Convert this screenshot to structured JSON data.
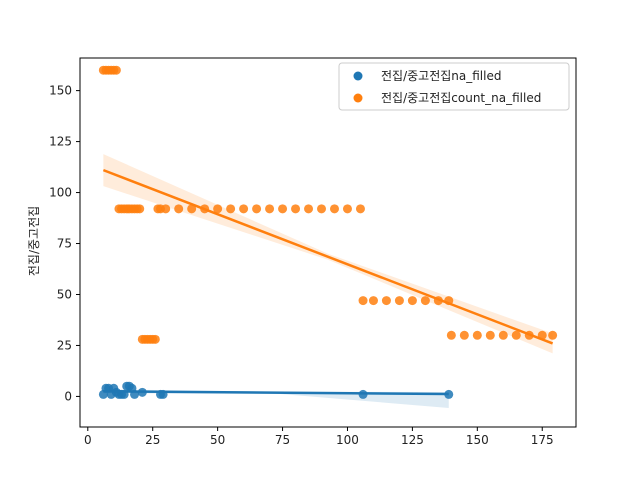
{
  "chart_data": {
    "type": "scatter",
    "title": "",
    "xlabel": "",
    "ylabel": "전집/중고전집",
    "xlim": [
      -3,
      188
    ],
    "ylim": [
      -15,
      166
    ],
    "xticks": [
      0,
      25,
      50,
      75,
      100,
      125,
      150,
      175
    ],
    "yticks": [
      0,
      25,
      50,
      75,
      100,
      125,
      150
    ],
    "grid": false,
    "legend_position": "top-right",
    "series": [
      {
        "name": "전집/중고전집na_filled",
        "color": "#1f77b4",
        "x": [
          6,
          7,
          8,
          9,
          10,
          11,
          12,
          13,
          14,
          15,
          16,
          17,
          18,
          21,
          28,
          29,
          106,
          139
        ],
        "y": [
          1,
          4,
          4,
          1,
          4,
          2,
          1,
          1,
          1,
          5,
          5,
          4,
          1,
          2,
          1,
          1,
          1,
          1
        ],
        "regression": {
          "x": [
            6,
            139
          ],
          "y": [
            2.5,
            1.2
          ]
        }
      },
      {
        "name": "전집/중고전집count_na_filled",
        "color": "#ff7f0e",
        "x": [
          6,
          7,
          8,
          9,
          10,
          11,
          12,
          13,
          14,
          15,
          16,
          17,
          18,
          19,
          20,
          21,
          22,
          23,
          24,
          25,
          26,
          27,
          28,
          30,
          35,
          40,
          45,
          50,
          55,
          60,
          65,
          70,
          75,
          80,
          85,
          90,
          95,
          100,
          105,
          106,
          110,
          115,
          120,
          125,
          130,
          135,
          139,
          140,
          145,
          150,
          155,
          160,
          165,
          170,
          175,
          179
        ],
        "y": [
          160,
          160,
          160,
          160,
          160,
          160,
          92,
          92,
          92,
          92,
          92,
          92,
          92,
          92,
          92,
          28,
          28,
          28,
          28,
          28,
          28,
          92,
          92,
          92,
          92,
          92,
          92,
          92,
          92,
          92,
          92,
          92,
          92,
          92,
          92,
          92,
          92,
          92,
          92,
          47,
          47,
          47,
          47,
          47,
          47,
          47,
          47,
          30,
          30,
          30,
          30,
          30,
          30,
          30,
          30,
          30
        ],
        "regression": {
          "x": [
            6,
            179
          ],
          "y": [
            111,
            26
          ]
        }
      }
    ]
  }
}
